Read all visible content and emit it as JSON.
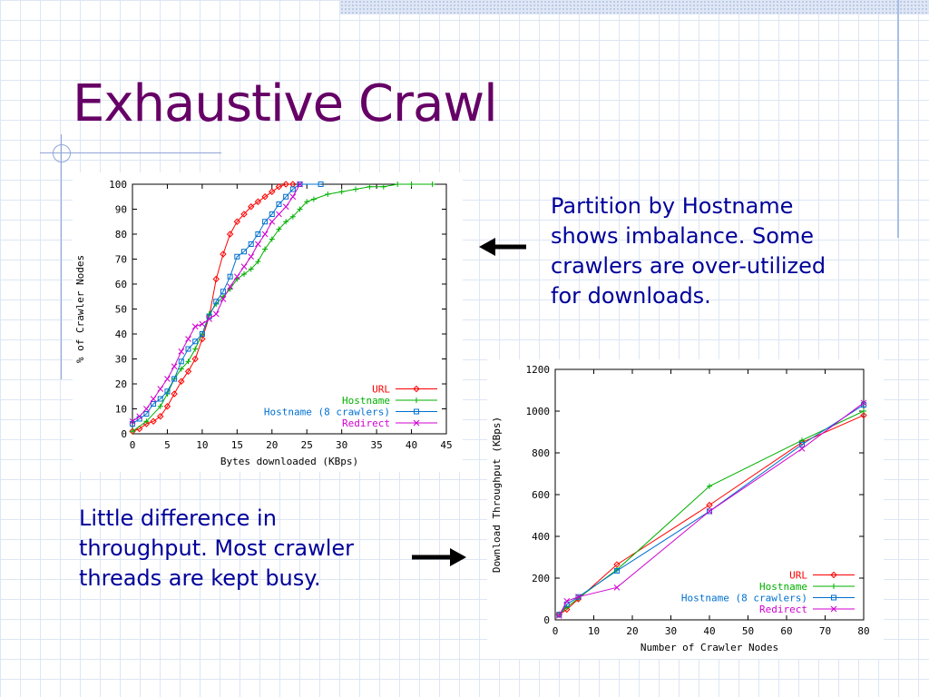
{
  "slide": {
    "title": "Exhaustive Crawl",
    "text_top": "Partition by Hostname shows imbalance. Some crawlers are over-utilized for downloads.",
    "text_bottom": "Little difference in throughput. Most crawler threads are kept busy.",
    "title_color": "#660066",
    "text_color": "#000099"
  },
  "chart_data": [
    {
      "type": "line",
      "xlabel": "Bytes downloaded (KBps)",
      "ylabel": "% of Crawler Nodes",
      "xlim": [
        0,
        45
      ],
      "ylim": [
        0,
        100
      ],
      "xticks": [
        0,
        5,
        10,
        15,
        20,
        25,
        30,
        35,
        40,
        45
      ],
      "yticks": [
        0,
        10,
        20,
        30,
        40,
        50,
        60,
        70,
        80,
        90,
        100
      ],
      "grid": false,
      "legend_position": "bottom-right",
      "series": [
        {
          "name": "URL",
          "color": "#ff0000",
          "marker": "diamond",
          "points": [
            [
              0,
              1
            ],
            [
              1,
              2
            ],
            [
              2,
              4
            ],
            [
              3,
              5
            ],
            [
              4,
              7
            ],
            [
              5,
              11
            ],
            [
              6,
              16
            ],
            [
              7,
              21
            ],
            [
              8,
              25
            ],
            [
              9,
              30
            ],
            [
              10,
              38
            ],
            [
              11,
              47
            ],
            [
              12,
              62
            ],
            [
              13,
              72
            ],
            [
              14,
              80
            ],
            [
              15,
              85
            ],
            [
              16,
              88
            ],
            [
              17,
              91
            ],
            [
              18,
              93
            ],
            [
              19,
              95
            ],
            [
              20,
              97
            ],
            [
              21,
              99
            ],
            [
              22,
              100
            ],
            [
              23,
              100
            ]
          ]
        },
        {
          "name": "Hostname",
          "color": "#00b000",
          "marker": "plus",
          "points": [
            [
              0,
              1
            ],
            [
              2,
              5
            ],
            [
              4,
              11
            ],
            [
              5,
              16
            ],
            [
              6,
              22
            ],
            [
              7,
              26
            ],
            [
              8,
              29
            ],
            [
              9,
              34
            ],
            [
              10,
              40
            ],
            [
              11,
              48
            ],
            [
              12,
              52
            ],
            [
              13,
              55
            ],
            [
              14,
              58
            ],
            [
              15,
              62
            ],
            [
              16,
              64
            ],
            [
              17,
              66
            ],
            [
              18,
              69
            ],
            [
              19,
              74
            ],
            [
              20,
              78
            ],
            [
              21,
              82
            ],
            [
              22,
              85
            ],
            [
              23,
              87
            ],
            [
              24,
              90
            ],
            [
              25,
              93
            ],
            [
              26,
              94
            ],
            [
              28,
              96
            ],
            [
              30,
              97
            ],
            [
              32,
              98
            ],
            [
              34,
              99
            ],
            [
              36,
              99
            ],
            [
              38,
              100
            ],
            [
              40,
              100
            ],
            [
              43,
              100
            ]
          ]
        },
        {
          "name": "Hostname (8 crawlers)",
          "color": "#0070d0",
          "marker": "square",
          "points": [
            [
              0,
              4
            ],
            [
              1,
              6
            ],
            [
              2,
              8
            ],
            [
              3,
              12
            ],
            [
              4,
              14
            ],
            [
              5,
              17
            ],
            [
              6,
              22
            ],
            [
              7,
              29
            ],
            [
              8,
              34
            ],
            [
              9,
              37
            ],
            [
              10,
              40
            ],
            [
              11,
              47
            ],
            [
              12,
              53
            ],
            [
              13,
              57
            ],
            [
              14,
              63
            ],
            [
              15,
              71
            ],
            [
              16,
              73
            ],
            [
              17,
              76
            ],
            [
              18,
              80
            ],
            [
              19,
              85
            ],
            [
              20,
              88
            ],
            [
              21,
              92
            ],
            [
              22,
              95
            ],
            [
              23,
              98
            ],
            [
              24,
              100
            ],
            [
              27,
              100
            ]
          ]
        },
        {
          "name": "Redirect",
          "color": "#d000d0",
          "marker": "cross",
          "points": [
            [
              0,
              5
            ],
            [
              1,
              7
            ],
            [
              2,
              10
            ],
            [
              3,
              14
            ],
            [
              4,
              18
            ],
            [
              5,
              22
            ],
            [
              6,
              27
            ],
            [
              7,
              33
            ],
            [
              8,
              38
            ],
            [
              9,
              43
            ],
            [
              10,
              44
            ],
            [
              11,
              46
            ],
            [
              12,
              48
            ],
            [
              13,
              54
            ],
            [
              14,
              59
            ],
            [
              15,
              63
            ],
            [
              16,
              67
            ],
            [
              17,
              71
            ],
            [
              18,
              76
            ],
            [
              19,
              80
            ],
            [
              20,
              85
            ],
            [
              21,
              88
            ],
            [
              22,
              91
            ],
            [
              23,
              95
            ],
            [
              24,
              100
            ]
          ]
        }
      ]
    },
    {
      "type": "line",
      "xlabel": "Number of Crawler Nodes",
      "ylabel": "Download Throughput (KBps)",
      "xlim": [
        0,
        80
      ],
      "ylim": [
        0,
        1200
      ],
      "xticks": [
        0,
        10,
        20,
        30,
        40,
        50,
        60,
        70,
        80
      ],
      "yticks": [
        0,
        200,
        400,
        600,
        800,
        1000,
        1200
      ],
      "grid": false,
      "legend_position": "bottom-right",
      "series": [
        {
          "name": "URL",
          "color": "#ff0000",
          "marker": "diamond",
          "points": [
            [
              1,
              25
            ],
            [
              3,
              50
            ],
            [
              6,
              100
            ],
            [
              16,
              265
            ],
            [
              40,
              550
            ],
            [
              64,
              850
            ],
            [
              80,
              980
            ]
          ]
        },
        {
          "name": "Hostname",
          "color": "#00b000",
          "marker": "plus",
          "points": [
            [
              1,
              25
            ],
            [
              3,
              60
            ],
            [
              6,
              105
            ],
            [
              16,
              240
            ],
            [
              40,
              640
            ],
            [
              64,
              860
            ],
            [
              80,
              1000
            ]
          ]
        },
        {
          "name": "Hostname (8 crawlers)",
          "color": "#0070d0",
          "marker": "square",
          "points": [
            [
              1,
              25
            ],
            [
              3,
              75
            ],
            [
              6,
              110
            ],
            [
              16,
              235
            ],
            [
              40,
              520
            ],
            [
              64,
              840
            ],
            [
              80,
              1030
            ]
          ]
        },
        {
          "name": "Redirect",
          "color": "#d000d0",
          "marker": "cross",
          "points": [
            [
              1,
              20
            ],
            [
              3,
              90
            ],
            [
              6,
              110
            ],
            [
              16,
              155
            ],
            [
              40,
              520
            ],
            [
              64,
              820
            ],
            [
              80,
              1040
            ]
          ]
        }
      ]
    }
  ]
}
